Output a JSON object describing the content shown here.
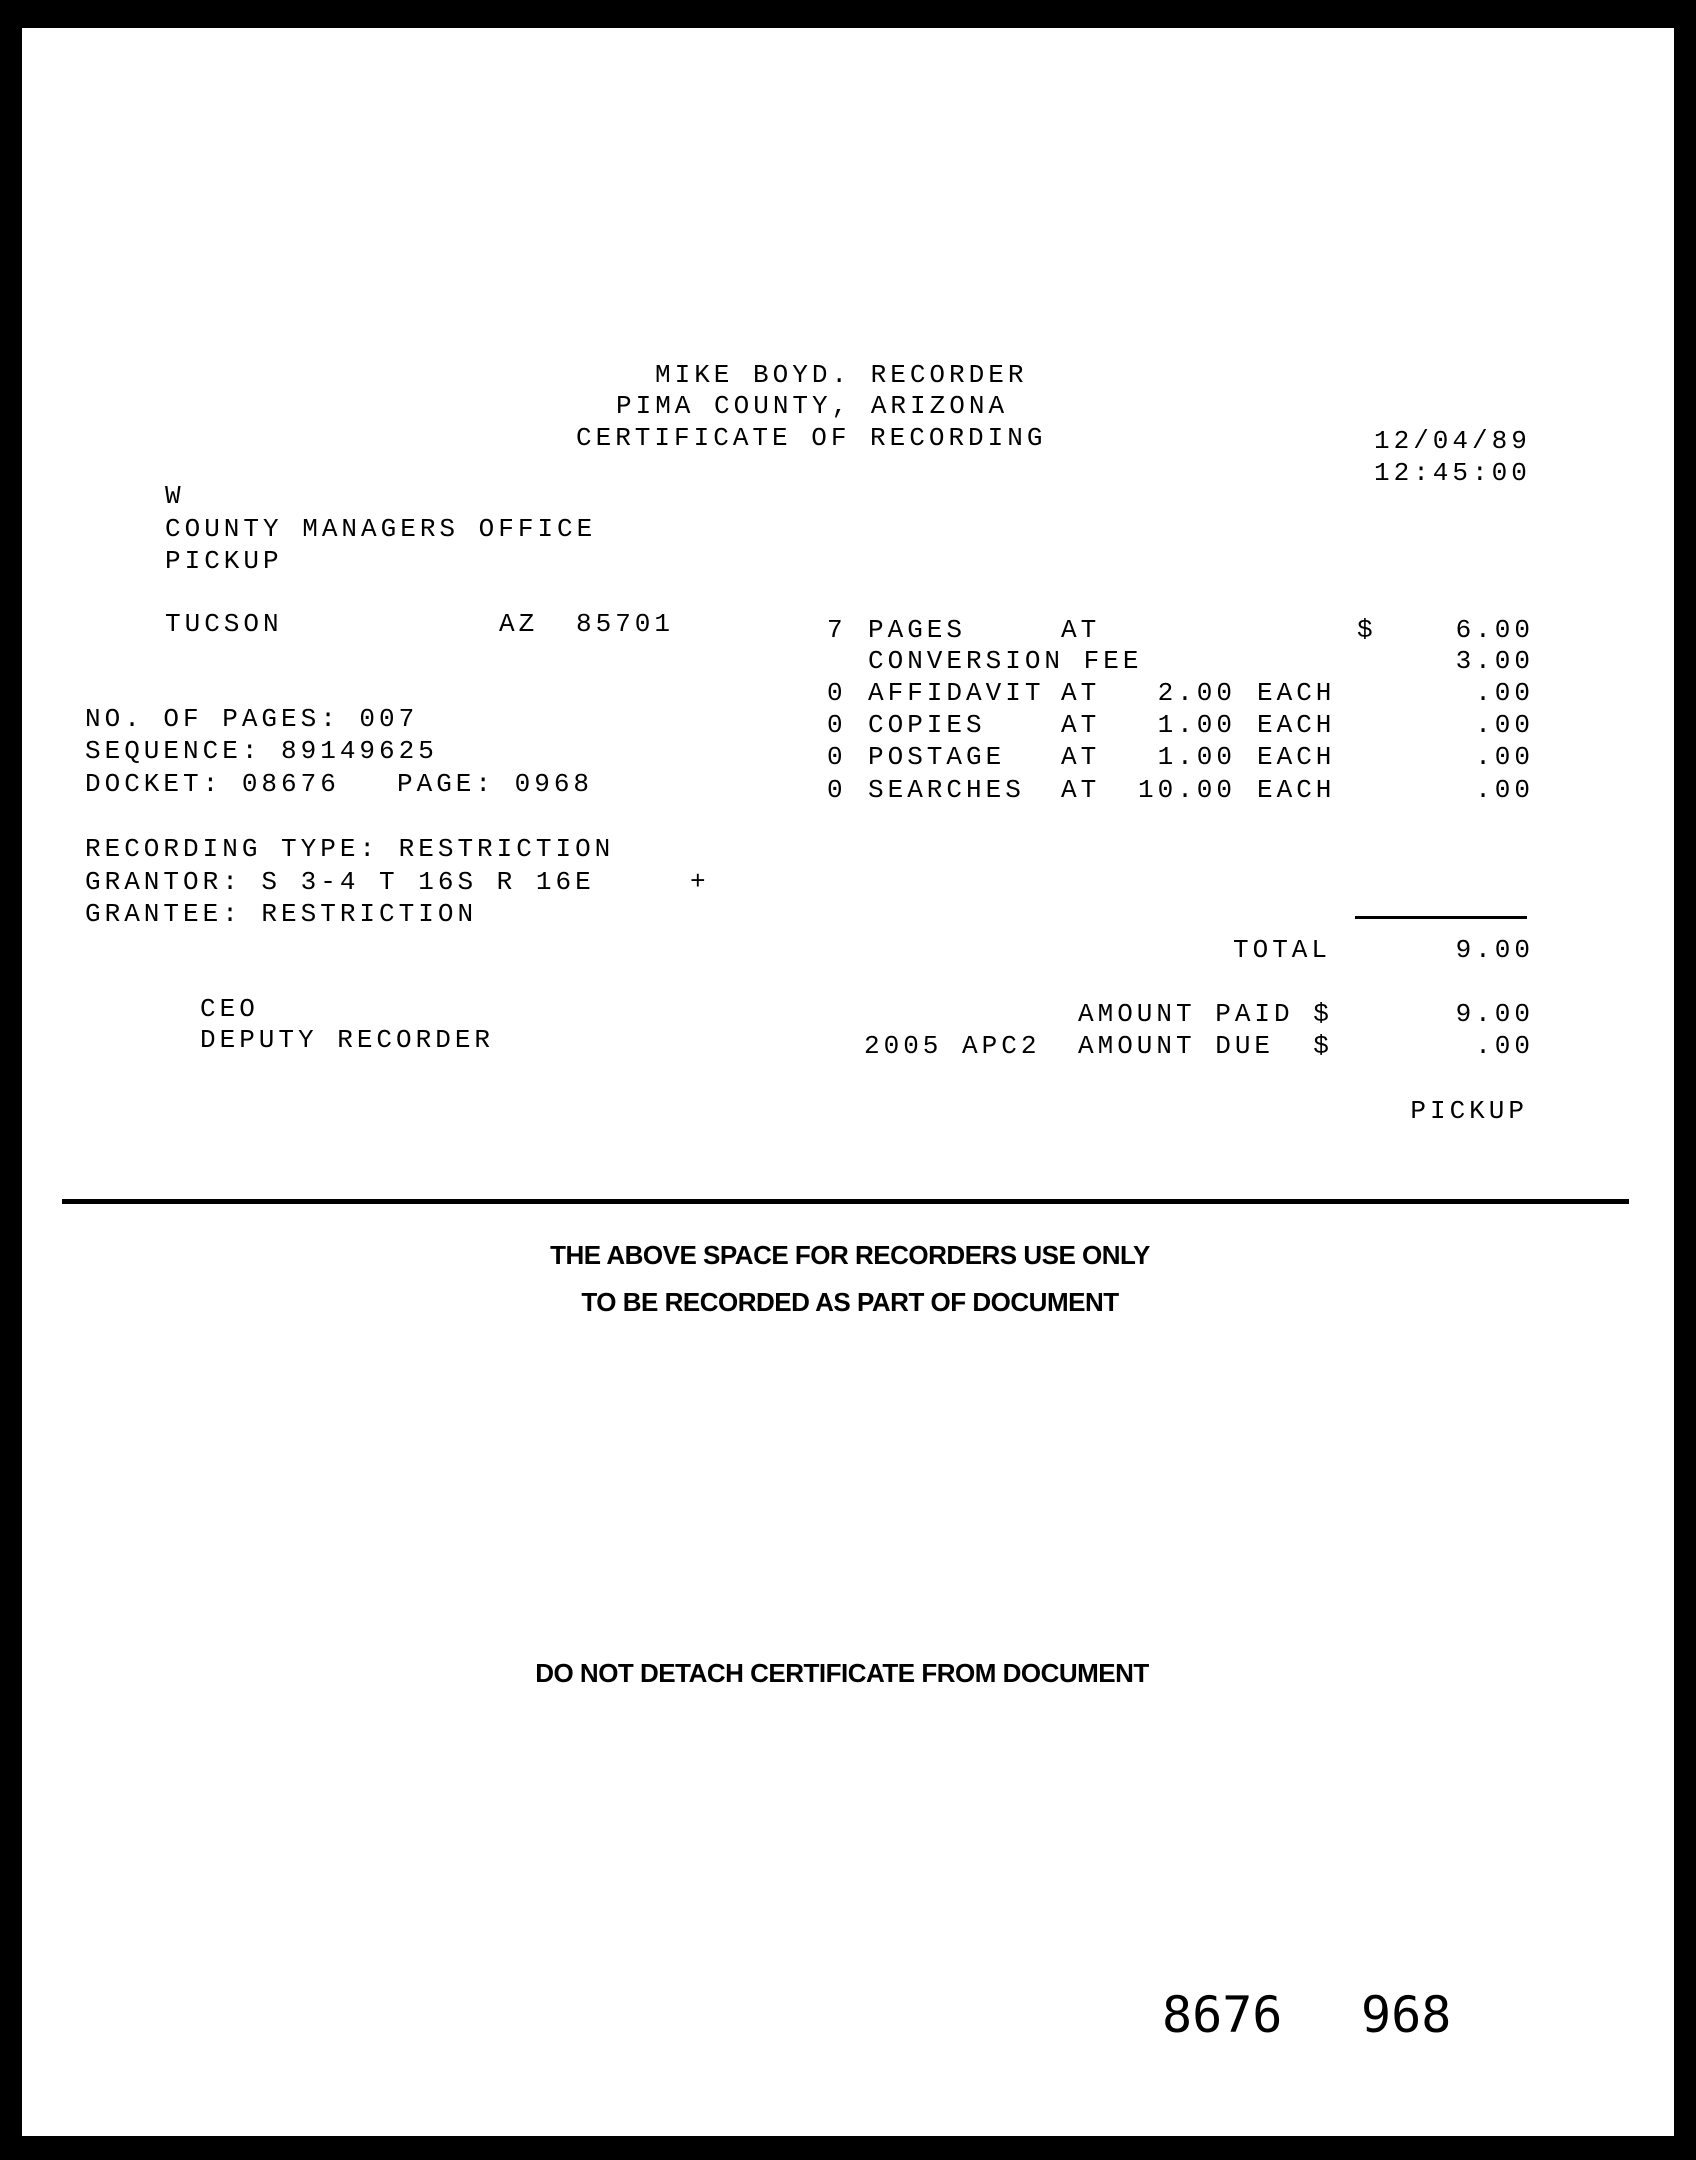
{
  "header": {
    "line1": "MIKE BOYD. RECORDER",
    "line2": "PIMA COUNTY, ARIZONA",
    "line3": "CERTIFICATE OF RECORDING",
    "date": "12/04/89",
    "time": "12:45:00"
  },
  "address": {
    "line1": "W",
    "line2": "COUNTY MANAGERS OFFICE",
    "line3": "PICKUP",
    "city": "TUCSON",
    "state": "AZ",
    "zip": "85701"
  },
  "fees": [
    {
      "qty": "7",
      "item": "PAGES",
      "at": "AT",
      "rate": "",
      "each": "",
      "currency": "$",
      "amount": "6.00"
    },
    {
      "qty": "",
      "item": "CONVERSION FEE",
      "at": "",
      "rate": "",
      "each": "",
      "currency": "",
      "amount": "3.00"
    },
    {
      "qty": "0",
      "item": "AFFIDAVIT",
      "at": "AT",
      "rate": "2.00",
      "each": "EACH",
      "currency": "",
      "amount": ".00"
    },
    {
      "qty": "0",
      "item": "COPIES",
      "at": "AT",
      "rate": "1.00",
      "each": "EACH",
      "currency": "",
      "amount": ".00"
    },
    {
      "qty": "0",
      "item": "POSTAGE",
      "at": "AT",
      "rate": "1.00",
      "each": "EACH",
      "currency": "",
      "amount": ".00"
    },
    {
      "qty": "0",
      "item": "SEARCHES",
      "at": "AT",
      "rate": "10.00",
      "each": "EACH",
      "currency": "",
      "amount": ".00"
    }
  ],
  "record": {
    "pages": "NO. OF PAGES: 007",
    "sequence": "SEQUENCE: 89149625",
    "docket": "DOCKET: 08676",
    "page": "PAGE: 0968",
    "type": "RECORDING TYPE: RESTRICTION",
    "grantor": "GRANTOR: S 3-4 T 16S R 16E",
    "plus": "+",
    "grantee": "GRANTEE: RESTRICTION"
  },
  "totals": {
    "total_label": "TOTAL",
    "total": "9.00",
    "paid_label": "AMOUNT PAID $",
    "paid": "9.00",
    "code": "2005 APC2",
    "due_label": "AMOUNT DUE  $",
    "due": ".00",
    "delivery": "PICKUP"
  },
  "signer": {
    "name": "CEO",
    "title": "DEPUTY RECORDER"
  },
  "notices": {
    "line1": "THE ABOVE SPACE FOR RECORDERS USE ONLY",
    "line2": "TO BE RECORDED AS PART OF DOCUMENT",
    "line3": "DO NOT DETACH CERTIFICATE FROM DOCUMENT"
  },
  "footer": {
    "docket": "8676",
    "page": "968"
  }
}
